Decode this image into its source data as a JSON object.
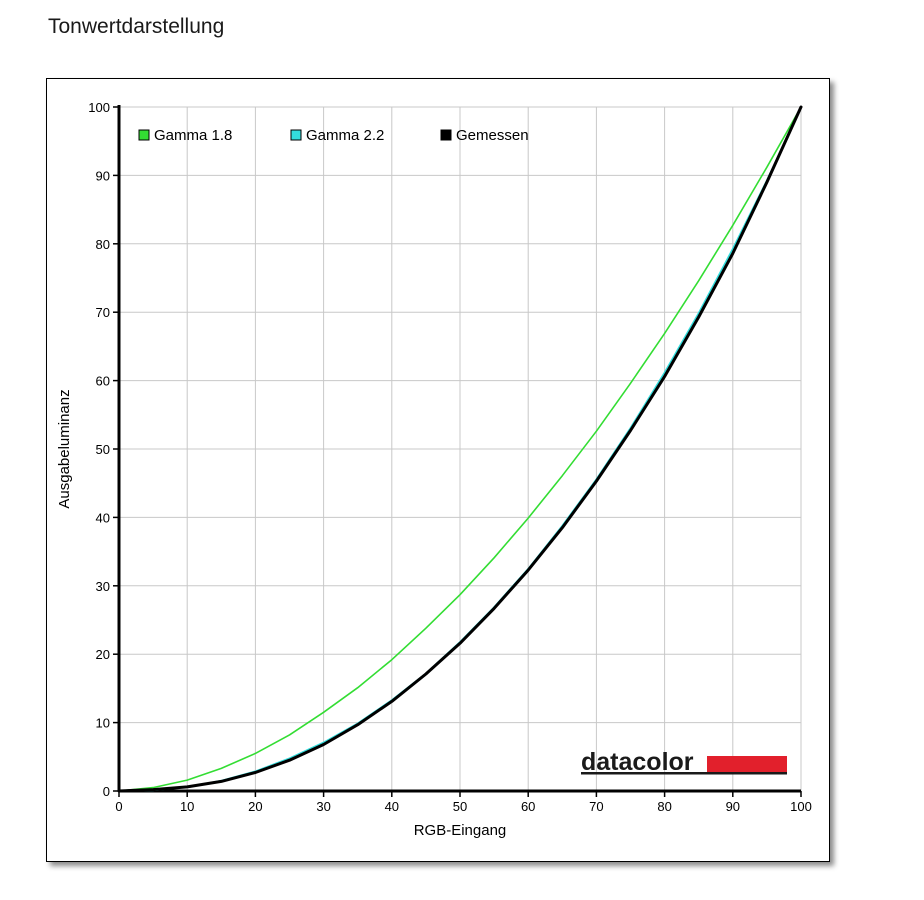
{
  "page": {
    "title": "Tonwertdarstellung"
  },
  "logo": {
    "text": "datacolor",
    "color": "#e2202c"
  },
  "chart_data": {
    "type": "line",
    "xlabel": "RGB-Eingang",
    "ylabel": "Ausgabeluminanz",
    "xlim": [
      0,
      100
    ],
    "ylim": [
      0,
      100
    ],
    "xticks": [
      0,
      10,
      20,
      30,
      40,
      50,
      60,
      70,
      80,
      90,
      100
    ],
    "yticks": [
      0,
      10,
      20,
      30,
      40,
      50,
      60,
      70,
      80,
      90,
      100
    ],
    "grid": true,
    "legend_position": "top-left",
    "x": [
      0,
      5,
      10,
      15,
      20,
      25,
      30,
      35,
      40,
      45,
      50,
      55,
      60,
      65,
      70,
      75,
      80,
      85,
      90,
      95,
      100
    ],
    "series": [
      {
        "name": "Gamma 1.8",
        "color": "#33dd33",
        "values": [
          0,
          0.5,
          1.6,
          3.3,
          5.5,
          8.2,
          11.5,
          15.1,
          19.2,
          23.8,
          28.7,
          34.1,
          39.9,
          46.1,
          52.6,
          59.6,
          66.9,
          74.6,
          82.7,
          91.2,
          100
        ]
      },
      {
        "name": "Gamma 2.2",
        "color": "#33dddd",
        "values": [
          0,
          0.1,
          0.6,
          1.5,
          2.9,
          4.8,
          7.1,
          9.9,
          13.3,
          17.2,
          21.8,
          26.9,
          32.5,
          38.8,
          45.6,
          53.1,
          61.2,
          69.9,
          79.3,
          89.3,
          100
        ]
      },
      {
        "name": "Gemessen",
        "color": "#000000",
        "values": [
          0,
          0.2,
          0.6,
          1.4,
          2.7,
          4.5,
          6.8,
          9.7,
          13.1,
          17.1,
          21.6,
          26.7,
          32.3,
          38.5,
          45.3,
          52.7,
          60.6,
          69.3,
          78.6,
          89.0,
          100
        ]
      }
    ]
  }
}
